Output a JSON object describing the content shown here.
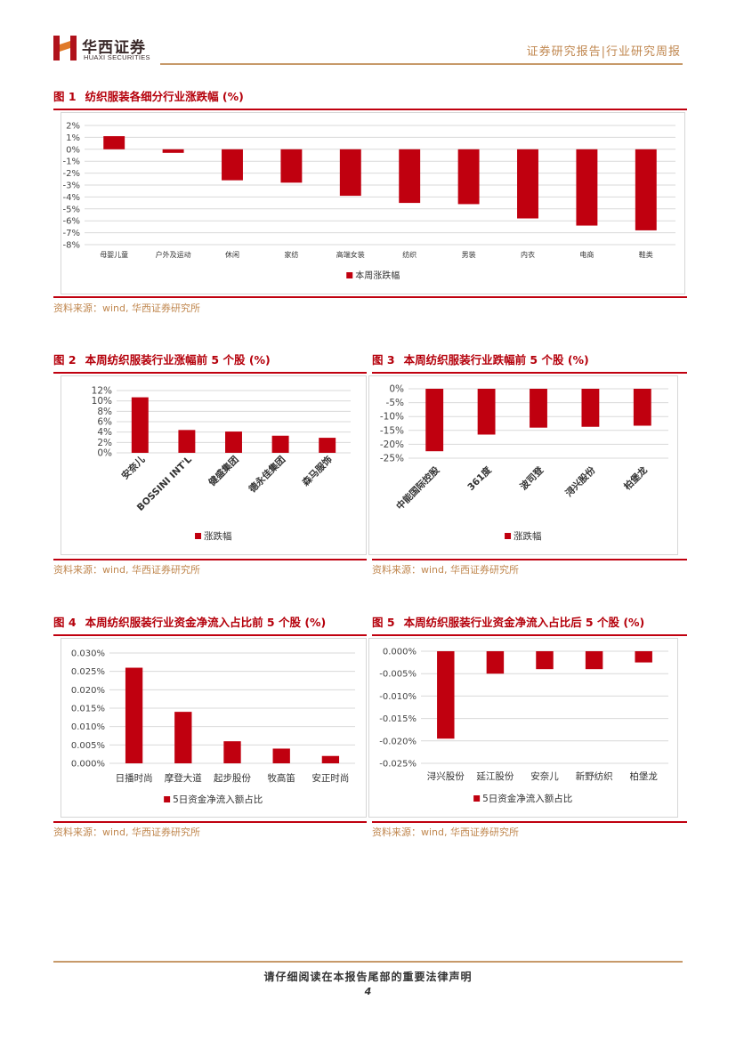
{
  "header": {
    "logo_cn": "华西证券",
    "logo_en": "HUAXI SECURITIES",
    "report_type": "证券研究报告|行业研究周报"
  },
  "figures": {
    "fig1": {
      "num": "图 1",
      "title": "纺织服装各细分行业涨跌幅 (%)",
      "source": "资料来源：wind, 华西证券研究所"
    },
    "fig2": {
      "num": "图 2",
      "title": "本周纺织服装行业涨幅前 5 个股 (%)",
      "source": "资料来源：wind, 华西证券研究所"
    },
    "fig3": {
      "num": "图 3",
      "title": "本周纺织服装行业跌幅前 5 个股 (%)",
      "source": "资料来源：wind, 华西证券研究所"
    },
    "fig4": {
      "num": "图 4",
      "title": "本周纺织服装行业资金净流入占比前 5 个股 (%)",
      "source": "资料来源：wind, 华西证券研究所"
    },
    "fig5": {
      "num": "图 5",
      "title": "本周纺织服装行业资金净流入占比后 5 个股 (%)",
      "source": "资料来源：wind, 华西证券研究所"
    }
  },
  "chart_data": [
    {
      "id": "fig1",
      "type": "bar",
      "categories": [
        "母婴儿童",
        "户外及运动",
        "休闲",
        "家纺",
        "高端女装",
        "纺织",
        "男装",
        "内衣",
        "电商",
        "鞋类"
      ],
      "series": [
        {
          "name": "本周涨跌幅",
          "values": [
            1.1,
            -0.3,
            -2.6,
            -2.8,
            -3.9,
            -4.5,
            -4.6,
            -5.8,
            -6.4,
            -6.8
          ]
        }
      ],
      "ylim": [
        -8,
        2
      ],
      "yticks": [
        "2%",
        "1%",
        "0%",
        "-1%",
        "-2%",
        "-3%",
        "-4%",
        "-5%",
        "-6%",
        "-7%",
        "-8%"
      ],
      "legend": "bottom",
      "color": "#c0000f"
    },
    {
      "id": "fig2",
      "type": "bar",
      "categories": [
        "安奈儿",
        "BOSSINI INT'L",
        "健盛集团",
        "德永佳集团",
        "森马服饰"
      ],
      "series": [
        {
          "name": "涨跌幅",
          "values": [
            10.7,
            4.4,
            4.1,
            3.3,
            2.9
          ]
        }
      ],
      "ylim": [
        0,
        12
      ],
      "yticks": [
        "12%",
        "10%",
        "8%",
        "6%",
        "4%",
        "2%",
        "0%"
      ],
      "legend": "bottom",
      "color": "#c0000f"
    },
    {
      "id": "fig3",
      "type": "bar",
      "categories": [
        "中能国际控股",
        "361度",
        "波司登",
        "浔兴股份",
        "柏堡龙"
      ],
      "series": [
        {
          "name": "涨跌幅",
          "values": [
            -22.5,
            -16.5,
            -14.0,
            -13.7,
            -13.3
          ]
        }
      ],
      "ylim": [
        -25,
        0
      ],
      "yticks": [
        "0%",
        "-5%",
        "-10%",
        "-15%",
        "-20%",
        "-25%"
      ],
      "legend": "bottom",
      "color": "#c0000f"
    },
    {
      "id": "fig4",
      "type": "bar",
      "categories": [
        "日播时尚",
        "摩登大道",
        "起步股份",
        "牧高笛",
        "安正时尚"
      ],
      "series": [
        {
          "name": "5日资金净流入额占比",
          "values": [
            0.026,
            0.014,
            0.006,
            0.004,
            0.002
          ]
        }
      ],
      "ylim": [
        0,
        0.03
      ],
      "yticks": [
        "0.030%",
        "0.025%",
        "0.020%",
        "0.015%",
        "0.010%",
        "0.005%",
        "0.000%"
      ],
      "legend": "bottom",
      "color": "#c0000f"
    },
    {
      "id": "fig5",
      "type": "bar",
      "categories": [
        "浔兴股份",
        "延江股份",
        "安奈儿",
        "新野纺织",
        "柏堡龙"
      ],
      "series": [
        {
          "name": "5日资金净流入额占比",
          "values": [
            -0.0195,
            -0.005,
            -0.004,
            -0.004,
            -0.0025
          ]
        }
      ],
      "ylim": [
        -0.025,
        0
      ],
      "yticks": [
        "0.000%",
        "-0.005%",
        "-0.010%",
        "-0.015%",
        "-0.020%",
        "-0.025%"
      ],
      "legend": "bottom",
      "color": "#c0000f"
    }
  ],
  "footer": {
    "disclaimer": "请仔细阅读在本报告尾部的重要法律声明",
    "page": "4"
  }
}
